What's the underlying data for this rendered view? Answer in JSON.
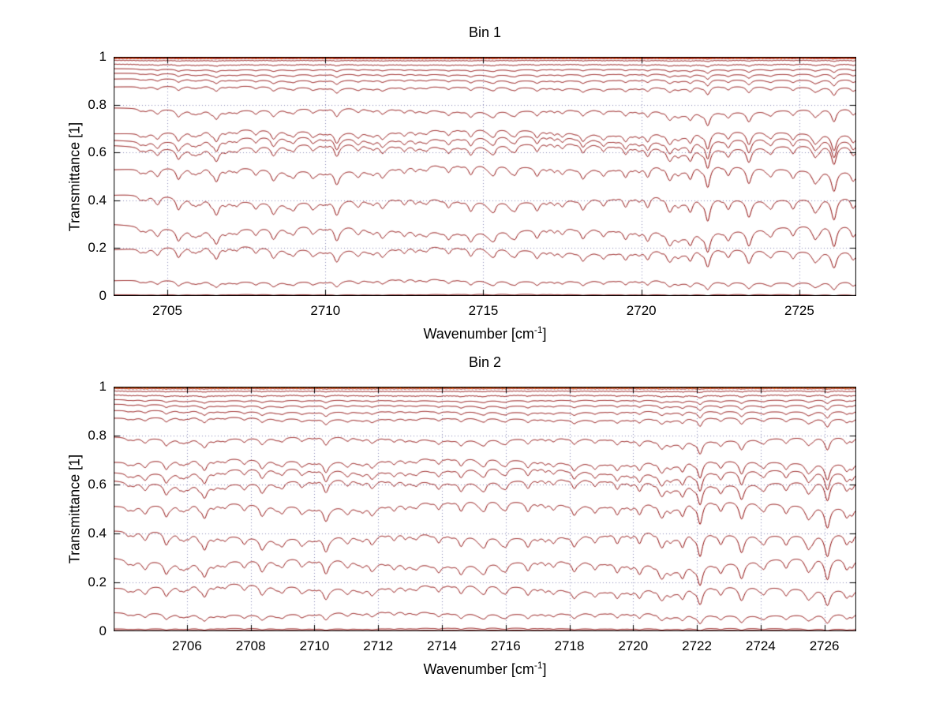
{
  "figure": {
    "background": "#ffffff",
    "curve_color": "#8b0000",
    "grid_color": "#8a8ab8",
    "axis_color": "#000000"
  },
  "chart_data": [
    {
      "type": "line",
      "title": "Bin 1",
      "xlabel": "Wavenumber [cm^-1]",
      "xlabel_parts": {
        "prefix": "Wavenumber [cm",
        "sup": "-1",
        "suffix": "]"
      },
      "ylabel": "Transmittance [1]",
      "xlim": [
        2703.3,
        2726.8
      ],
      "ylim": [
        0,
        1
      ],
      "xticks": [
        2705,
        2710,
        2715,
        2720,
        2725
      ],
      "xtick_labels": [
        "2705",
        "2710",
        "2715",
        "2720",
        "2725"
      ],
      "yticks": [
        0,
        0.2,
        0.4,
        0.6,
        0.8,
        1
      ],
      "ytick_labels": [
        "0",
        "0.2",
        "0.4",
        "0.6",
        "0.8",
        "1"
      ],
      "grid": "dotted",
      "legend": "none",
      "series_color": "#8b0000",
      "series_levels": [
        0.993,
        0.985,
        0.968,
        0.948,
        0.928,
        0.905,
        0.875,
        0.78,
        0.69,
        0.66,
        0.63,
        0.54,
        0.41,
        0.285,
        0.2,
        0.065,
        0.006
      ],
      "highlight_series": [
        {
          "level": 0.9995,
          "color": "#ff6a00",
          "width": 3,
          "noise": 0.0028
        },
        {
          "level": 0.998,
          "color": "#e83000",
          "width": 1.2,
          "noise": 0.0022
        },
        {
          "level": 0.9965,
          "color": "#a00000",
          "width": 1,
          "noise": 0.0018
        }
      ],
      "line_halfwidth_cm": 0.09,
      "absorption_lines_format": "[wavenumber_cm-1, relative_strength]",
      "absorption_lines": [
        [
          2704.15,
          0.05
        ],
        [
          2704.7,
          0.09
        ],
        [
          2705.35,
          0.15
        ],
        [
          2705.9,
          0.07
        ],
        [
          2706.55,
          0.11
        ],
        [
          2707.2,
          0.06
        ],
        [
          2707.8,
          0.09
        ],
        [
          2708.35,
          0.12
        ],
        [
          2709.0,
          0.07
        ],
        [
          2709.6,
          0.09
        ],
        [
          2710.35,
          0.16
        ],
        [
          2711.05,
          0.08
        ],
        [
          2711.8,
          0.1
        ],
        [
          2712.5,
          0.08
        ],
        [
          2713.2,
          0.06
        ],
        [
          2713.9,
          0.1
        ],
        [
          2714.6,
          0.12
        ],
        [
          2715.3,
          0.08
        ],
        [
          2716.0,
          0.1
        ],
        [
          2716.7,
          0.12
        ],
        [
          2717.5,
          0.08
        ],
        [
          2718.15,
          0.13
        ],
        [
          2718.8,
          0.09
        ],
        [
          2719.5,
          0.12
        ],
        [
          2720.2,
          0.14
        ],
        [
          2720.9,
          0.13
        ],
        [
          2721.55,
          0.17
        ],
        [
          2722.1,
          0.3
        ],
        [
          2722.75,
          0.13
        ],
        [
          2723.4,
          0.14
        ],
        [
          2724.1,
          0.1
        ],
        [
          2724.8,
          0.12
        ],
        [
          2725.5,
          0.15
        ],
        [
          2726.1,
          0.27
        ],
        [
          2726.7,
          0.13
        ],
        [
          2727.2,
          0.09
        ]
      ]
    },
    {
      "type": "line",
      "title": "Bin 2",
      "xlabel": "Wavenumber [cm^-1]",
      "xlabel_parts": {
        "prefix": "Wavenumber [cm",
        "sup": "-1",
        "suffix": "]"
      },
      "ylabel": "Transmittance [1]",
      "xlim": [
        2703.7,
        2727.0
      ],
      "ylim": [
        0,
        1
      ],
      "xticks": [
        2706,
        2708,
        2710,
        2712,
        2714,
        2716,
        2718,
        2720,
        2722,
        2724,
        2726
      ],
      "xtick_labels": [
        "2706",
        "2708",
        "2710",
        "2712",
        "2714",
        "2716",
        "2718",
        "2720",
        "2722",
        "2724",
        "2726"
      ],
      "yticks": [
        0,
        0.2,
        0.4,
        0.6,
        0.8,
        1
      ],
      "ytick_labels": [
        "0",
        "0.2",
        "0.4",
        "0.6",
        "0.8",
        "1"
      ],
      "grid": "dotted",
      "legend": "none",
      "series_color": "#8b0000",
      "series_levels": [
        0.992,
        0.982,
        0.965,
        0.945,
        0.925,
        0.9,
        0.872,
        0.79,
        0.7,
        0.66,
        0.615,
        0.525,
        0.4,
        0.29,
        0.185,
        0.075,
        0.012,
        0.004
      ],
      "highlight_series": [
        {
          "level": 0.9995,
          "color": "#ff6a00",
          "width": 3,
          "noise": 0.003
        },
        {
          "level": 0.9985,
          "color": "#e83000",
          "width": 1.2,
          "noise": 0.0025
        },
        {
          "level": 0.9988,
          "color": "#444466",
          "width": 1,
          "noise": 0.003
        },
        {
          "level": 0.997,
          "color": "#552200",
          "width": 1,
          "noise": 0.002
        }
      ],
      "line_halfwidth_cm": 0.09,
      "absorption_lines_format": "[wavenumber_cm-1, relative_strength]",
      "absorption_lines": [
        [
          2704.15,
          0.05
        ],
        [
          2704.7,
          0.09
        ],
        [
          2705.35,
          0.15
        ],
        [
          2705.9,
          0.07
        ],
        [
          2706.55,
          0.11
        ],
        [
          2707.2,
          0.06
        ],
        [
          2707.8,
          0.09
        ],
        [
          2708.35,
          0.12
        ],
        [
          2709.0,
          0.07
        ],
        [
          2709.6,
          0.09
        ],
        [
          2710.35,
          0.16
        ],
        [
          2711.05,
          0.08
        ],
        [
          2711.8,
          0.1
        ],
        [
          2712.5,
          0.08
        ],
        [
          2713.2,
          0.06
        ],
        [
          2713.9,
          0.1
        ],
        [
          2714.6,
          0.12
        ],
        [
          2715.3,
          0.08
        ],
        [
          2716.0,
          0.1
        ],
        [
          2716.7,
          0.12
        ],
        [
          2717.5,
          0.08
        ],
        [
          2718.15,
          0.13
        ],
        [
          2718.8,
          0.09
        ],
        [
          2719.5,
          0.12
        ],
        [
          2720.2,
          0.14
        ],
        [
          2720.9,
          0.13
        ],
        [
          2721.55,
          0.17
        ],
        [
          2722.1,
          0.3
        ],
        [
          2722.75,
          0.13
        ],
        [
          2723.4,
          0.14
        ],
        [
          2724.1,
          0.1
        ],
        [
          2724.8,
          0.12
        ],
        [
          2725.5,
          0.15
        ],
        [
          2726.1,
          0.27
        ],
        [
          2726.7,
          0.13
        ],
        [
          2727.2,
          0.09
        ]
      ]
    }
  ]
}
